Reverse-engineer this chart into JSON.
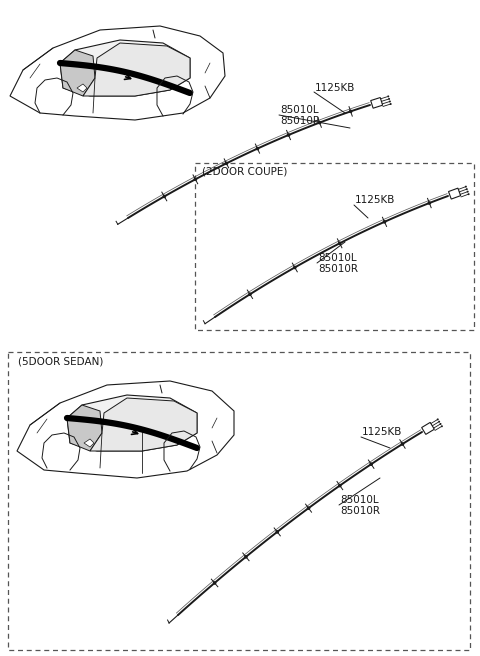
{
  "background_color": "#ffffff",
  "line_color": "#1a1a1a",
  "dashed_box_color": "#555555",
  "label_2door": "(2DOOR COUPE)",
  "label_5door": "(5DOOR SEDAN)",
  "part_1125KB": "1125KB",
  "part_85010L": "85010L",
  "part_85010R": "85010R",
  "figsize": [
    4.8,
    6.56
  ],
  "dpi": 100
}
